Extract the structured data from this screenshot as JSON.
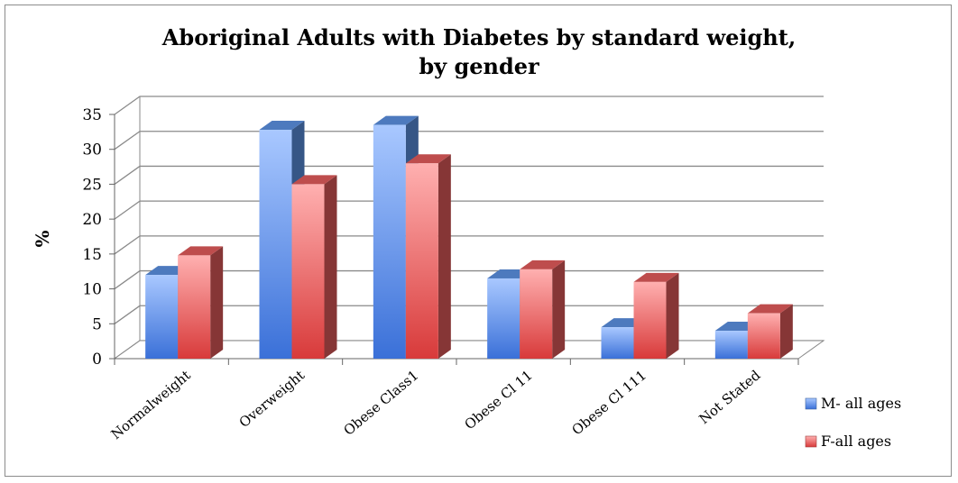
{
  "chart_data": {
    "type": "bar",
    "title_line1": "Aboriginal Adults with Diabetes by standard weight,",
    "title_line2": "by gender",
    "xlabel": "",
    "ylabel": "%",
    "ylim": [
      0,
      35
    ],
    "yticks": [
      0,
      5,
      10,
      15,
      20,
      25,
      30,
      35
    ],
    "categories": [
      "Normalweight",
      "Overweight",
      "Obese Class1",
      "Obese Cl 11",
      "Obese Cl 111",
      "Not Stated"
    ],
    "series": [
      {
        "name": "M- all ages",
        "values": [
          12,
          32.8,
          33.5,
          11.5,
          4.5,
          4
        ],
        "color": "#5a8fe0"
      },
      {
        "name": "F-all ages",
        "values": [
          14.8,
          25,
          28,
          12.8,
          11,
          6.5
        ],
        "color": "#e05a5a"
      }
    ],
    "grid": true,
    "legend_position": "right"
  }
}
